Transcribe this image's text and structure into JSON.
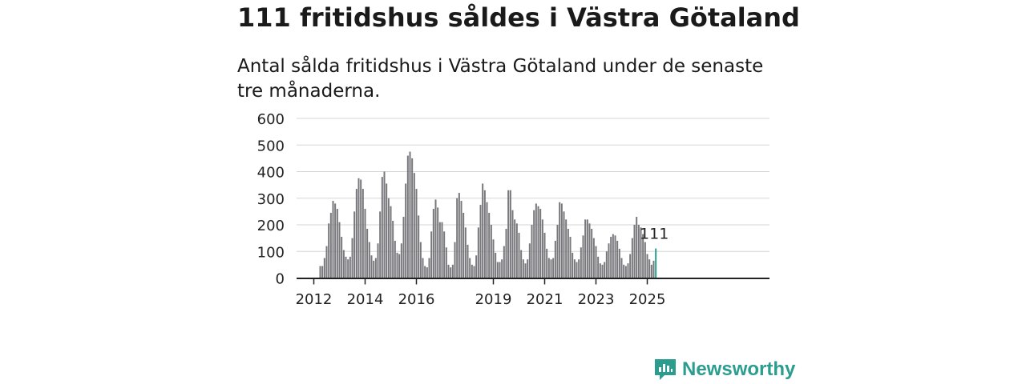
{
  "header": {
    "title": "111 fritidshus såldes i Västra Götaland",
    "subtitle": "Antal sålda fritidshus i Västra Götaland under de senaste tre månaderna."
  },
  "brand": {
    "name": "Newsworthy",
    "color": "#2a9d8f"
  },
  "chart_data": {
    "type": "bar",
    "ylim": [
      0,
      600
    ],
    "yticks": [
      0,
      100,
      200,
      300,
      400,
      500,
      600
    ],
    "xtick_labels": [
      "2012",
      "2014",
      "2016",
      "2019",
      "2021",
      "2023",
      "2025"
    ],
    "bar_color": "#77777c",
    "highlight_color": "#2a9d8f",
    "highlight_label": "111",
    "start": "2012-04",
    "series": [
      {
        "values": [
          45,
          45,
          75,
          120,
          205,
          245,
          290,
          280,
          260,
          210,
          155,
          105,
          80,
          70,
          80,
          150,
          250,
          335,
          375,
          370,
          335,
          260,
          185,
          135,
          85,
          65,
          75,
          130,
          250,
          380,
          400,
          355,
          300,
          270,
          215,
          140,
          95,
          90,
          130,
          230,
          355,
          460,
          475,
          450,
          395,
          335,
          235,
          135,
          75,
          45,
          40,
          75,
          175,
          260,
          295,
          265,
          210,
          210,
          175,
          115,
          50,
          40,
          50,
          135,
          300,
          320,
          290,
          245,
          190,
          125,
          75,
          50,
          45,
          85,
          190,
          275,
          355,
          330,
          285,
          245,
          200,
          145,
          95,
          60,
          60,
          70,
          120,
          185,
          330,
          330,
          255,
          220,
          205,
          170,
          105,
          70,
          55,
          70,
          130,
          200,
          255,
          280,
          270,
          260,
          220,
          170,
          110,
          75,
          70,
          75,
          140,
          200,
          285,
          280,
          250,
          220,
          185,
          155,
          95,
          70,
          60,
          70,
          115,
          160,
          220,
          220,
          205,
          185,
          150,
          120,
          80,
          55,
          50,
          60,
          100,
          130,
          155,
          165,
          160,
          140,
          110,
          75,
          50,
          45,
          55,
          90,
          150,
          200,
          230,
          200,
          190,
          165,
          135,
          90,
          70,
          50,
          65,
          111
        ]
      }
    ]
  }
}
